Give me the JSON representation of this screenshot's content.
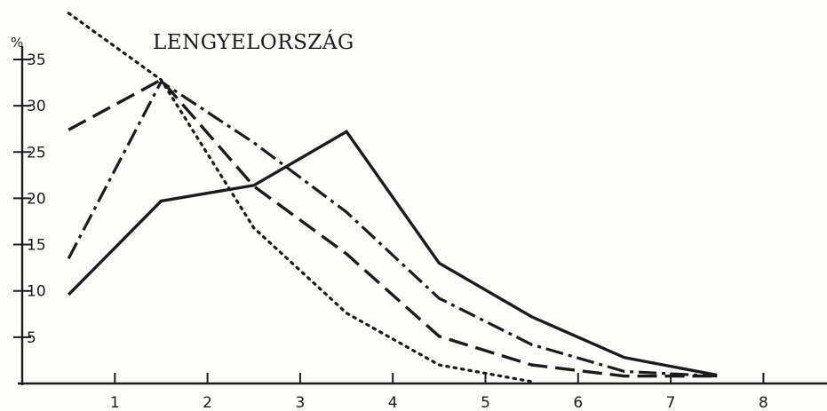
{
  "chart_data": {
    "type": "line",
    "title": "LENGYELORSZÁG",
    "ylabel": "%",
    "xlabel": "",
    "x_ticks": [
      "1",
      "2",
      "3",
      "4",
      "5",
      "6",
      "7",
      "8"
    ],
    "y_ticks": [
      "5",
      "10",
      "15",
      "20",
      "25",
      "30",
      "35"
    ],
    "xlim": [
      0,
      8.8
    ],
    "ylim": [
      0,
      36
    ],
    "grid": false,
    "series": [
      {
        "style": "solid",
        "x": [
          0.5,
          1.5,
          2.5,
          3.5,
          4.5,
          5.5,
          6.5,
          7.5
        ],
        "values": [
          9.6,
          19.7,
          21.4,
          27.2,
          13.0,
          7.2,
          2.8,
          0.9
        ]
      },
      {
        "style": "long-dash",
        "x": [
          0.5,
          1.5,
          2.5,
          3.5,
          4.5,
          5.5,
          6.5,
          7.5
        ],
        "values": [
          27.4,
          32.8,
          21.3,
          14.0,
          5.1,
          2.0,
          0.8,
          0.8
        ]
      },
      {
        "style": "dash-dot",
        "x": [
          0.5,
          1.5,
          2.5,
          3.5,
          4.5,
          5.5,
          6.5,
          7.5
        ],
        "values": [
          13.5,
          32.6,
          26.0,
          18.5,
          9.2,
          4.2,
          1.3,
          0.8
        ]
      },
      {
        "style": "dotted",
        "x": [
          0.5,
          1.5,
          2.5,
          3.5,
          4.5,
          5.5
        ],
        "values": [
          40.0,
          32.8,
          16.8,
          7.6,
          2.0,
          0.2
        ]
      }
    ]
  }
}
